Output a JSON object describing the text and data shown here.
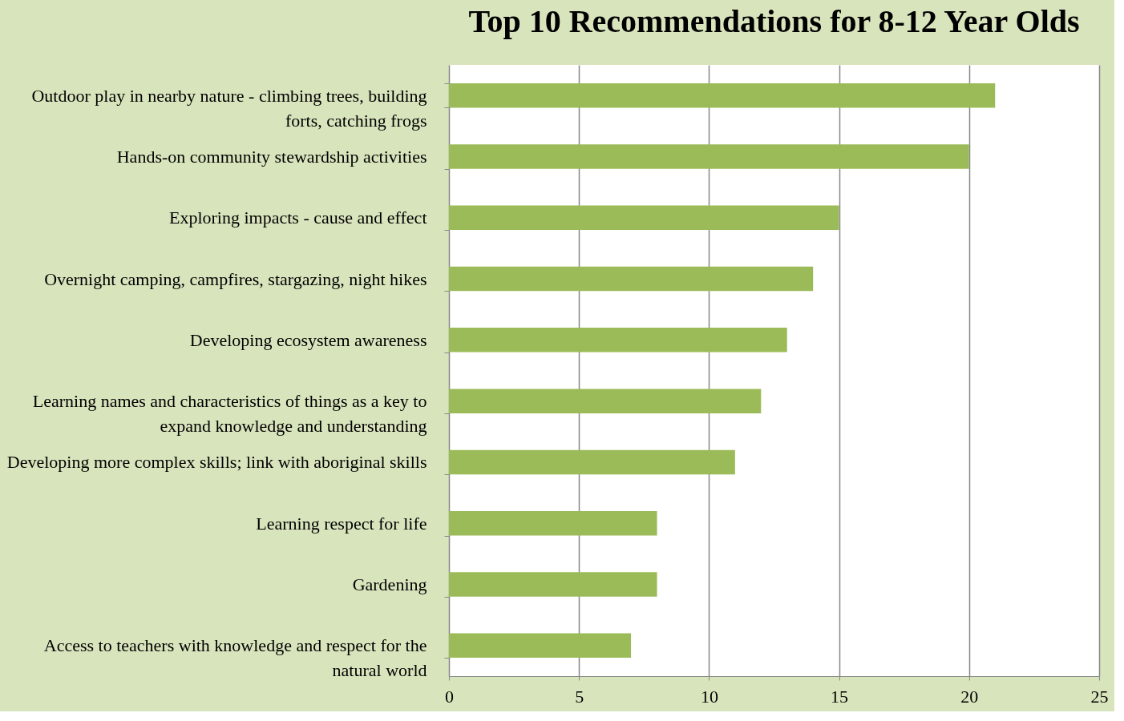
{
  "chart_data": {
    "type": "bar",
    "orientation": "horizontal",
    "title": "Top 10 Recommendations for 8-12 Year Olds",
    "categories": [
      "Outdoor play in nearby nature - climbing trees, building\nforts, catching frogs",
      "Hands-on community stewardship activities",
      "Exploring impacts - cause and effect",
      "Overnight camping, campfires, stargazing, night hikes",
      "Developing ecosystem awareness",
      "Learning names and characteristics of things as a key to\nexpand knowledge and understanding",
      "Developing more complex skills; link with aboriginal skills",
      "Learning respect for life",
      "Gardening",
      "Access to teachers with knowledge and respect for the\nnatural world"
    ],
    "values": [
      21,
      20,
      15,
      14,
      13,
      12,
      11,
      8,
      8,
      7
    ],
    "color": "#9bbb59",
    "xlim": [
      0,
      25
    ],
    "xticks": [
      0,
      5,
      10,
      15,
      20,
      25
    ],
    "grid": "x"
  }
}
